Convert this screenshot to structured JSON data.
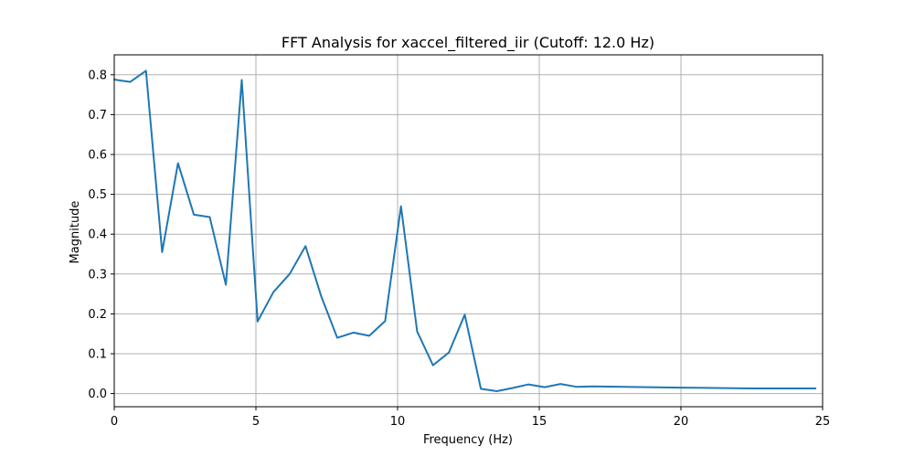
{
  "chart_data": {
    "type": "line",
    "title": "FFT Analysis for xaccel_filtered_iir (Cutoff: 12.0 Hz)",
    "xlabel": "Frequency (Hz)",
    "ylabel": "Magnitude",
    "xlim": [
      0,
      25
    ],
    "ylim": [
      -0.033,
      0.85
    ],
    "x_ticks": [
      0,
      5,
      10,
      15,
      20,
      25
    ],
    "x_tick_labels": [
      "0",
      "5",
      "10",
      "15",
      "20",
      "25"
    ],
    "y_ticks": [
      0.0,
      0.1,
      0.2,
      0.3,
      0.4,
      0.5,
      0.6,
      0.7,
      0.8
    ],
    "y_tick_labels": [
      "0.0",
      "0.1",
      "0.2",
      "0.3",
      "0.4",
      "0.5",
      "0.6",
      "0.7",
      "0.8"
    ],
    "grid": true,
    "series": [
      {
        "color": "#1f77b4",
        "x": [
          0.0,
          0.56,
          1.12,
          1.69,
          2.25,
          2.81,
          3.37,
          3.94,
          4.5,
          5.06,
          5.62,
          6.19,
          6.75,
          7.31,
          7.87,
          8.44,
          9.0,
          9.56,
          10.12,
          10.69,
          11.25,
          11.81,
          12.37,
          12.94,
          13.5,
          14.06,
          14.62,
          15.19,
          15.75,
          16.31,
          16.87,
          20.0,
          22.5,
          24.75
        ],
        "y": [
          0.788,
          0.782,
          0.81,
          0.355,
          0.578,
          0.449,
          0.443,
          0.273,
          0.787,
          0.181,
          0.255,
          0.3,
          0.37,
          0.243,
          0.14,
          0.153,
          0.145,
          0.182,
          0.47,
          0.156,
          0.071,
          0.103,
          0.198,
          0.012,
          0.006,
          0.014,
          0.023,
          0.016,
          0.024,
          0.017,
          0.018,
          0.015,
          0.013,
          0.013
        ]
      }
    ]
  }
}
